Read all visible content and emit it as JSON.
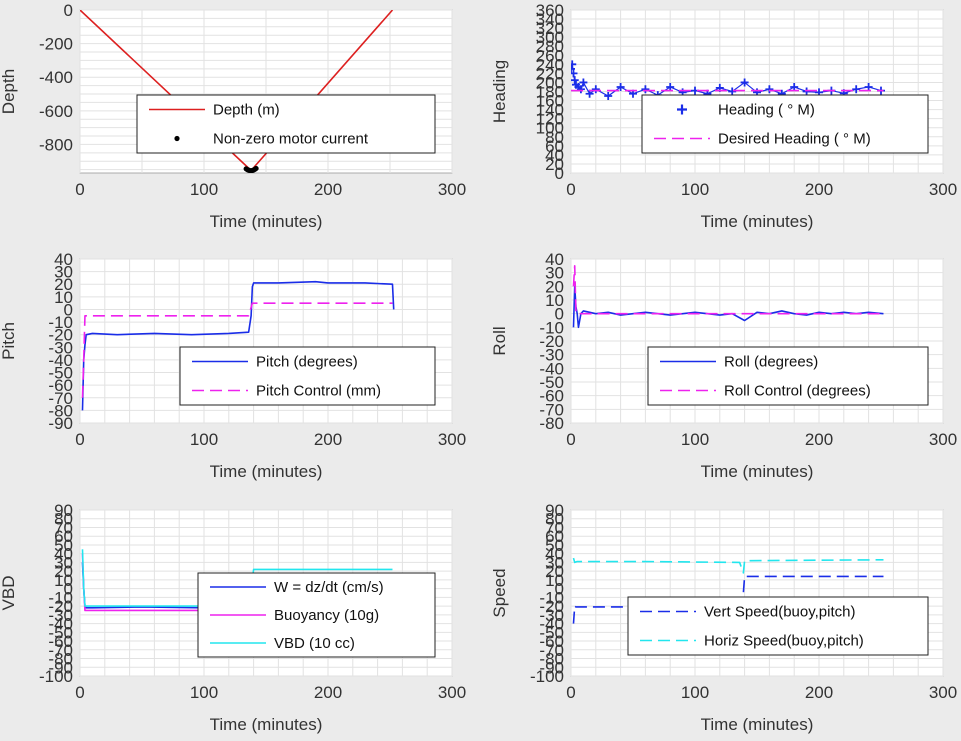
{
  "colors": {
    "depth": "#dd2020",
    "motor": "#000000",
    "blue": "#1a2de8",
    "magenta": "#ee22ee",
    "cyan": "#22e6ee",
    "plot_bg": "#ffffff",
    "figure_bg": "#ebebeb"
  },
  "chart_data": [
    {
      "id": "depth",
      "type": "line",
      "xlabel": "Time (minutes)",
      "ylabel": "Depth",
      "xlim": [
        0,
        300
      ],
      "ylim": [
        -970,
        0
      ],
      "xticks": [
        0,
        100,
        200,
        300
      ],
      "yticks": [
        0,
        -200,
        -400,
        -600,
        -800
      ],
      "grid": true,
      "legend": "center-right",
      "series": [
        {
          "name": "Depth (m)",
          "style": "line",
          "color": "#dd2020",
          "x": [
            0,
            138,
            252
          ],
          "y": [
            0,
            -955,
            0
          ]
        },
        {
          "name": "Non-zero motor current",
          "style": "dots",
          "color": "#000000",
          "x": [
            134,
            135,
            136,
            137,
            138,
            139,
            140,
            141,
            142
          ],
          "y": [
            -945,
            -950,
            -953,
            -956,
            -957,
            -955,
            -952,
            -948,
            -943
          ]
        }
      ]
    },
    {
      "id": "heading",
      "type": "line",
      "xlabel": "Time (minutes)",
      "ylabel": "Heading",
      "xlim": [
        0,
        300
      ],
      "ylim": [
        0,
        360
      ],
      "xticks": [
        0,
        100,
        200,
        300
      ],
      "yticks": [
        0,
        20,
        40,
        60,
        80,
        100,
        120,
        140,
        160,
        180,
        200,
        220,
        240,
        260,
        280,
        300,
        320,
        340,
        360
      ],
      "grid": true,
      "legend": "lower-right",
      "series": [
        {
          "name": "Heading ( ° M)",
          "style": "plus",
          "color": "#1a2de8",
          "x": [
            0,
            1,
            2,
            3,
            4,
            6,
            8,
            10,
            15,
            20,
            30,
            40,
            50,
            60,
            70,
            80,
            90,
            100,
            110,
            120,
            130,
            140,
            150,
            160,
            170,
            180,
            190,
            200,
            210,
            220,
            230,
            240,
            250
          ],
          "y": [
            230,
            240,
            220,
            205,
            195,
            190,
            185,
            200,
            175,
            185,
            170,
            190,
            175,
            185,
            172,
            190,
            178,
            182,
            175,
            188,
            180,
            200,
            178,
            185,
            175,
            190,
            180,
            178,
            182,
            176,
            185,
            190,
            182
          ]
        },
        {
          "name": "Desired Heading ( ° M)",
          "style": "dashed",
          "color": "#ee22ee",
          "x": [
            0,
            252
          ],
          "y": [
            182,
            182
          ]
        }
      ]
    },
    {
      "id": "pitch",
      "type": "line",
      "xlabel": "Time (minutes)",
      "ylabel": "Pitch",
      "xlim": [
        0,
        300
      ],
      "ylim": [
        -90,
        40
      ],
      "xticks": [
        0,
        100,
        200,
        300
      ],
      "yticks": [
        40,
        30,
        20,
        10,
        0,
        -10,
        -20,
        -30,
        -40,
        -50,
        -60,
        -70,
        -80,
        -90
      ],
      "grid": true,
      "legend": "lower-right",
      "series": [
        {
          "name": "Pitch (degrees)",
          "style": "line",
          "color": "#1a2de8",
          "x": [
            2,
            2.5,
            3,
            4,
            5,
            10,
            30,
            60,
            90,
            120,
            136,
            138,
            139,
            140,
            160,
            190,
            200,
            230,
            252,
            253
          ],
          "y": [
            -80,
            -60,
            -40,
            -28,
            -20,
            -19,
            -20,
            -19,
            -20,
            -19,
            -18,
            -5,
            18,
            21,
            21,
            22,
            21,
            21,
            20,
            0
          ]
        },
        {
          "name": "Pitch Control (mm)",
          "style": "dashed",
          "color": "#ee22ee",
          "x": [
            2,
            3,
            4,
            136,
            139,
            140,
            252
          ],
          "y": [
            -70,
            -40,
            -5,
            -5,
            5,
            5,
            5
          ]
        }
      ]
    },
    {
      "id": "roll",
      "type": "line",
      "xlabel": "Time (minutes)",
      "ylabel": "Roll",
      "xlim": [
        0,
        300
      ],
      "ylim": [
        -80,
        40
      ],
      "xticks": [
        0,
        100,
        200,
        300
      ],
      "yticks": [
        40,
        30,
        20,
        10,
        0,
        -10,
        -20,
        -30,
        -40,
        -50,
        -60,
        -70,
        -80
      ],
      "grid": true,
      "legend": "lower-right",
      "series": [
        {
          "name": "Roll (degrees)",
          "style": "line",
          "color": "#1a2de8",
          "x": [
            2,
            3,
            4,
            5,
            6,
            8,
            10,
            20,
            30,
            40,
            50,
            60,
            70,
            80,
            90,
            100,
            110,
            120,
            130,
            140,
            150,
            160,
            170,
            180,
            190,
            200,
            210,
            220,
            230,
            240,
            252
          ],
          "y": [
            -10,
            20,
            5,
            0,
            -10,
            0,
            2,
            0,
            1,
            -1,
            0,
            1,
            0,
            -1,
            0,
            1,
            0,
            -1,
            0,
            -5,
            1,
            0,
            2,
            0,
            -1,
            1,
            0,
            1,
            0,
            1,
            0
          ]
        },
        {
          "name": "Roll Control (degrees)",
          "style": "dashed",
          "color": "#ee22ee",
          "x": [
            2,
            3,
            4,
            6,
            252
          ],
          "y": [
            20,
            35,
            0,
            0,
            0
          ]
        }
      ]
    },
    {
      "id": "vbd",
      "type": "line",
      "xlabel": "Time (minutes)",
      "ylabel": "VBD",
      "xlim": [
        0,
        300
      ],
      "ylim": [
        -100,
        90
      ],
      "xticks": [
        0,
        100,
        200,
        300
      ],
      "yticks": [
        90,
        80,
        70,
        60,
        50,
        40,
        30,
        20,
        10,
        0,
        -10,
        -20,
        -30,
        -40,
        -50,
        -60,
        -70,
        -80,
        -90,
        -100
      ],
      "grid": true,
      "legend": "lower-right",
      "series": [
        {
          "name": "W = dz/dt (cm/s)",
          "style": "line",
          "color": "#1a2de8",
          "x": [
            2,
            3,
            4,
            5,
            10,
            50,
            100,
            136,
            139,
            140,
            160,
            200,
            252
          ],
          "y": [
            30,
            0,
            -20,
            -22,
            -22,
            -21,
            -22,
            -21,
            0,
            14,
            14,
            13,
            14
          ]
        },
        {
          "name": "Buoyancy (10g)",
          "style": "line",
          "color": "#ee22ee",
          "x": [
            2,
            3,
            4,
            5,
            136,
            139,
            140,
            252
          ],
          "y": [
            40,
            0,
            -25,
            -25,
            -25,
            5,
            17,
            17
          ]
        },
        {
          "name": "VBD (10 cc)",
          "style": "line",
          "color": "#22e6ee",
          "x": [
            2,
            3,
            4,
            5,
            136,
            139,
            140,
            252
          ],
          "y": [
            45,
            0,
            -20,
            -20,
            -20,
            10,
            22,
            22
          ]
        }
      ]
    },
    {
      "id": "speed",
      "type": "line",
      "xlabel": "Time (minutes)",
      "ylabel": "Speed",
      "xlim": [
        0,
        300
      ],
      "ylim": [
        -100,
        90
      ],
      "xticks": [
        0,
        100,
        200,
        300
      ],
      "yticks": [
        90,
        80,
        70,
        60,
        50,
        40,
        30,
        20,
        10,
        0,
        -10,
        -20,
        -30,
        -40,
        -50,
        -60,
        -70,
        -80,
        -90,
        -100
      ],
      "grid": true,
      "legend": "lower-right",
      "series": [
        {
          "name": "Vert Speed(buoy,pitch)",
          "style": "dashed",
          "color": "#1a2de8",
          "x": [
            2,
            3,
            4,
            5,
            10,
            60,
            136,
            139,
            140,
            252
          ],
          "y": [
            -40,
            -20,
            -21,
            -21,
            -21,
            -21,
            -21,
            -5,
            14,
            14
          ]
        },
        {
          "name": "Horiz Speed(buoy,pitch)",
          "style": "dashed",
          "color": "#22e6ee",
          "x": [
            2,
            3,
            5,
            60,
            136,
            139,
            140,
            252
          ],
          "y": [
            35,
            30,
            31,
            31,
            30,
            18,
            32,
            33
          ]
        }
      ]
    }
  ]
}
